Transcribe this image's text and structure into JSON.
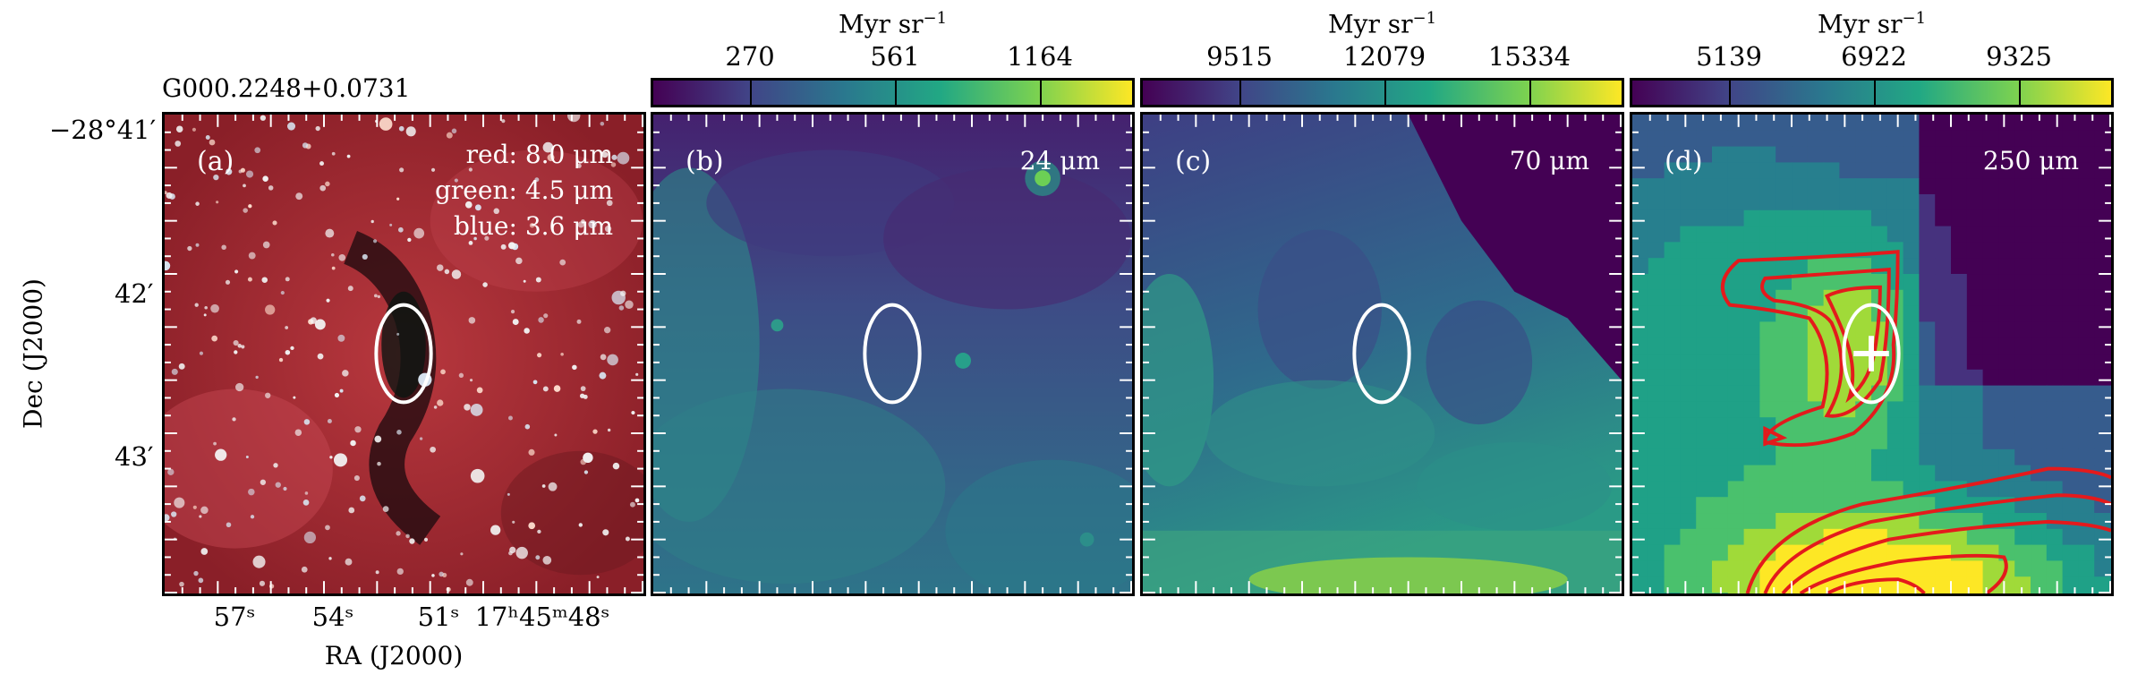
{
  "title": "G000.2248+0.0731",
  "colorbar_unit_prefix": "Myr sr",
  "colorbar_unit_exp": "−1",
  "panels": [
    {
      "tag": "(a)",
      "bands": [
        "red: 8.0 μm",
        "green: 4.5 μm",
        "blue: 3.6 μm"
      ]
    },
    {
      "tag": "(b)",
      "band": "24 μm",
      "cbar": [
        "270",
        "561",
        "1164"
      ]
    },
    {
      "tag": "(c)",
      "band": "70 μm",
      "cbar": [
        "9515",
        "12079",
        "15334"
      ]
    },
    {
      "tag": "(d)",
      "band": "250 μm",
      "cbar": [
        "5139",
        "6922",
        "9325"
      ]
    }
  ],
  "axes": {
    "ylabel": "Dec (J2000)",
    "xlabel": "RA (J2000)",
    "yticks": [
      "−28°41′",
      "42′",
      "43′"
    ],
    "xticks": [
      "57ˢ",
      "54ˢ",
      "51ˢ",
      "17ʰ45ᵐ48ˢ"
    ]
  },
  "colors": {
    "contour": "#e41a1c",
    "ellipse": "#ffffff",
    "viridis_low": "#440154",
    "viridis_high": "#fde725"
  }
}
